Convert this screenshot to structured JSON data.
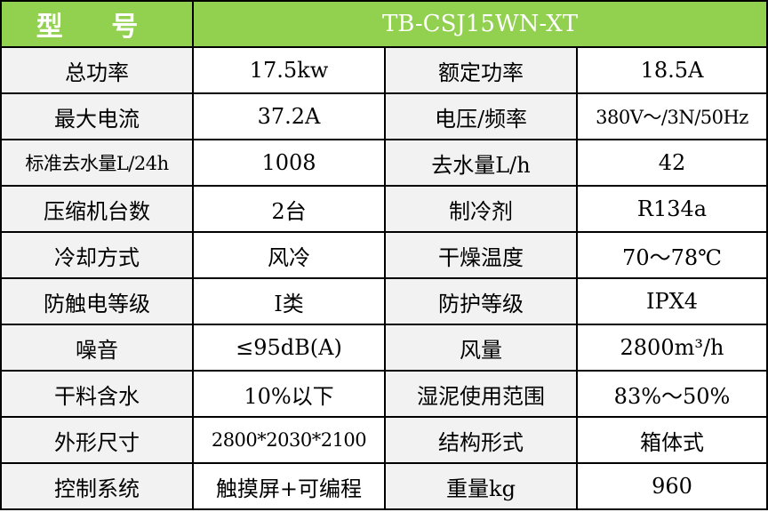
{
  "header": {
    "label": "型 号",
    "model": "TB-CSJ15WN-XT"
  },
  "rows": [
    {
      "k1": "总功率",
      "v1": "17.5kw",
      "k2": "额定功率",
      "v2": "18.5A"
    },
    {
      "k1": "最大电流",
      "v1": "37.2A",
      "k2": "电压/频率",
      "v2": "380V～/3N/50Hz"
    },
    {
      "k1": "标准去水量L/24h",
      "v1": "1008",
      "k2": "去水量L/h",
      "v2": "42"
    },
    {
      "k1": "压缩机台数",
      "v1": "2台",
      "k2": "制冷剂",
      "v2": "R134a"
    },
    {
      "k1": "冷却方式",
      "v1": "风冷",
      "k2": "干燥温度",
      "v2": "70～78℃"
    },
    {
      "k1": "防触电等级",
      "v1": "I类",
      "k2": "防护等级",
      "v2": "IPX4"
    },
    {
      "k1": "噪音",
      "v1": "≤95dB(A)",
      "k2": "风量",
      "v2": "2800m³/h"
    },
    {
      "k1": "干料含水",
      "v1": "10%以下",
      "k2": "湿泥使用范围",
      "v2": "83%～50%"
    },
    {
      "k1": "外形尺寸",
      "v1": "2800*2030*2100",
      "k2": "结构形式",
      "v2": "箱体式"
    },
    {
      "k1": "控制系统",
      "v1": "触摸屏+可编程",
      "k2": "重量kg",
      "v2": "960"
    }
  ]
}
